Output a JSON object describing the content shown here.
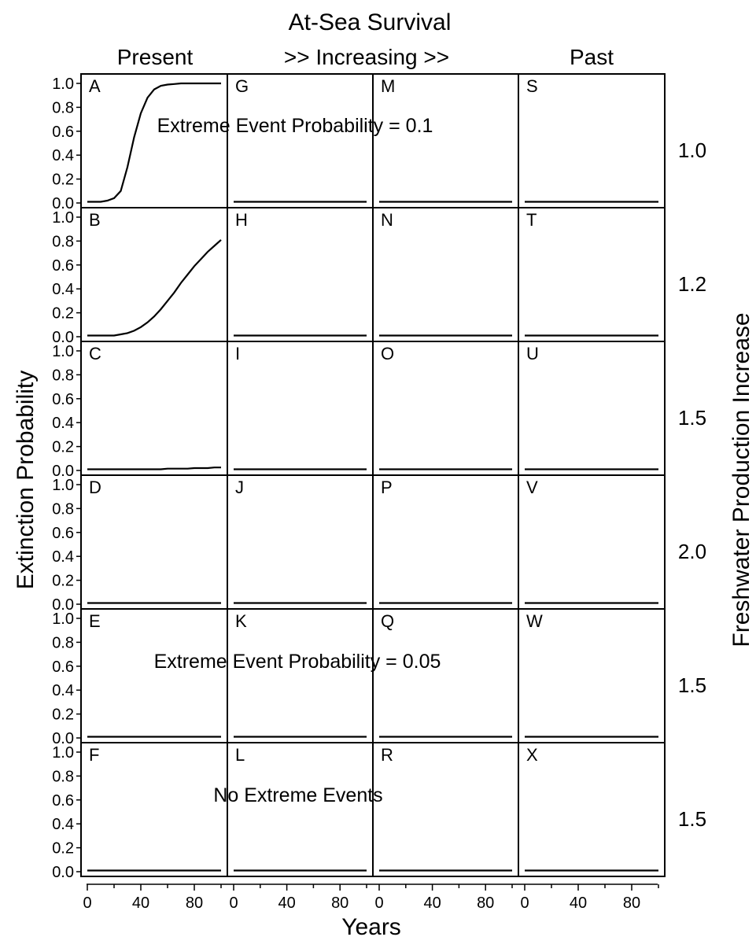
{
  "chart_data": {
    "type": "line",
    "title": "At-Sea Survival",
    "column_headers": [
      "Present",
      ">> Increasing >>",
      "",
      "Past"
    ],
    "xlabel": "Years",
    "ylabel": "Extinction Probability",
    "right_label": "Freshwater Production Increase",
    "row_labels": [
      "1.0",
      "1.2",
      "1.5",
      "2.0",
      "1.5",
      "1.5"
    ],
    "xlim": [
      0,
      100
    ],
    "ylim": [
      0,
      1.0
    ],
    "x_ticks": [
      "0",
      "40",
      "80"
    ],
    "y_ticks": [
      "0.0",
      "0.2",
      "0.4",
      "0.6",
      "0.8",
      "1.0"
    ],
    "annotations": [
      "Extreme Event Probability = 0.1",
      "Extreme Event Probability = 0.05",
      "No Extreme Events"
    ],
    "x": [
      0,
      5,
      10,
      15,
      20,
      25,
      30,
      35,
      40,
      45,
      50,
      55,
      60,
      65,
      70,
      75,
      80,
      85,
      90,
      95,
      100
    ],
    "panels": [
      {
        "letter": "A",
        "row": 0,
        "col": 0,
        "values": [
          0.01,
          0.01,
          0.01,
          0.02,
          0.04,
          0.1,
          0.3,
          0.55,
          0.75,
          0.88,
          0.95,
          0.98,
          0.99,
          0.995,
          1.0,
          1.0,
          1.0,
          1.0,
          1.0,
          1.0,
          1.0
        ]
      },
      {
        "letter": "B",
        "row": 1,
        "col": 0,
        "values": [
          0.01,
          0.01,
          0.01,
          0.01,
          0.01,
          0.02,
          0.03,
          0.05,
          0.08,
          0.12,
          0.17,
          0.23,
          0.3,
          0.37,
          0.45,
          0.52,
          0.59,
          0.65,
          0.71,
          0.76,
          0.81
        ]
      },
      {
        "letter": "C",
        "row": 2,
        "col": 0,
        "values": [
          0.01,
          0.01,
          0.01,
          0.01,
          0.01,
          0.01,
          0.01,
          0.01,
          0.01,
          0.01,
          0.01,
          0.01,
          0.015,
          0.015,
          0.015,
          0.015,
          0.02,
          0.02,
          0.02,
          0.025,
          0.025
        ]
      },
      {
        "letter": "D",
        "row": 3,
        "col": 0,
        "values": [
          0.01,
          0.01,
          0.01,
          0.01,
          0.01,
          0.01,
          0.01,
          0.01,
          0.01,
          0.01,
          0.01,
          0.01,
          0.01,
          0.01,
          0.01,
          0.01,
          0.01,
          0.01,
          0.01,
          0.01,
          0.01
        ]
      },
      {
        "letter": "E",
        "row": 4,
        "col": 0,
        "values": [
          0.01,
          0.01,
          0.01,
          0.01,
          0.01,
          0.01,
          0.01,
          0.01,
          0.01,
          0.01,
          0.01,
          0.01,
          0.01,
          0.01,
          0.01,
          0.01,
          0.01,
          0.01,
          0.01,
          0.01,
          0.01
        ]
      },
      {
        "letter": "F",
        "row": 5,
        "col": 0,
        "values": [
          0.01,
          0.01,
          0.01,
          0.01,
          0.01,
          0.01,
          0.01,
          0.01,
          0.01,
          0.01,
          0.01,
          0.01,
          0.01,
          0.01,
          0.01,
          0.01,
          0.01,
          0.01,
          0.01,
          0.01,
          0.01
        ]
      },
      {
        "letter": "G",
        "row": 0,
        "col": 1,
        "values": [
          0.01,
          0.01,
          0.01,
          0.01,
          0.01,
          0.01,
          0.01,
          0.01,
          0.01,
          0.01,
          0.01,
          0.01,
          0.01,
          0.01,
          0.01,
          0.01,
          0.01,
          0.01,
          0.01,
          0.01,
          0.01
        ]
      },
      {
        "letter": "H",
        "row": 1,
        "col": 1,
        "values": [
          0.01,
          0.01,
          0.01,
          0.01,
          0.01,
          0.01,
          0.01,
          0.01,
          0.01,
          0.01,
          0.01,
          0.01,
          0.01,
          0.01,
          0.01,
          0.01,
          0.01,
          0.01,
          0.01,
          0.01,
          0.01
        ]
      },
      {
        "letter": "I",
        "row": 2,
        "col": 1,
        "values": [
          0.01,
          0.01,
          0.01,
          0.01,
          0.01,
          0.01,
          0.01,
          0.01,
          0.01,
          0.01,
          0.01,
          0.01,
          0.01,
          0.01,
          0.01,
          0.01,
          0.01,
          0.01,
          0.01,
          0.01,
          0.01
        ]
      },
      {
        "letter": "J",
        "row": 3,
        "col": 1,
        "values": [
          0.01,
          0.01,
          0.01,
          0.01,
          0.01,
          0.01,
          0.01,
          0.01,
          0.01,
          0.01,
          0.01,
          0.01,
          0.01,
          0.01,
          0.01,
          0.01,
          0.01,
          0.01,
          0.01,
          0.01,
          0.01
        ]
      },
      {
        "letter": "K",
        "row": 4,
        "col": 1,
        "values": [
          0.01,
          0.01,
          0.01,
          0.01,
          0.01,
          0.01,
          0.01,
          0.01,
          0.01,
          0.01,
          0.01,
          0.01,
          0.01,
          0.01,
          0.01,
          0.01,
          0.01,
          0.01,
          0.01,
          0.01,
          0.01
        ]
      },
      {
        "letter": "L",
        "row": 5,
        "col": 1,
        "values": [
          0.01,
          0.01,
          0.01,
          0.01,
          0.01,
          0.01,
          0.01,
          0.01,
          0.01,
          0.01,
          0.01,
          0.01,
          0.01,
          0.01,
          0.01,
          0.01,
          0.01,
          0.01,
          0.01,
          0.01,
          0.01
        ]
      },
      {
        "letter": "M",
        "row": 0,
        "col": 2,
        "values": [
          0.01,
          0.01,
          0.01,
          0.01,
          0.01,
          0.01,
          0.01,
          0.01,
          0.01,
          0.01,
          0.01,
          0.01,
          0.01,
          0.01,
          0.01,
          0.01,
          0.01,
          0.01,
          0.01,
          0.01,
          0.01
        ]
      },
      {
        "letter": "N",
        "row": 1,
        "col": 2,
        "values": [
          0.01,
          0.01,
          0.01,
          0.01,
          0.01,
          0.01,
          0.01,
          0.01,
          0.01,
          0.01,
          0.01,
          0.01,
          0.01,
          0.01,
          0.01,
          0.01,
          0.01,
          0.01,
          0.01,
          0.01,
          0.01
        ]
      },
      {
        "letter": "O",
        "row": 2,
        "col": 2,
        "values": [
          0.01,
          0.01,
          0.01,
          0.01,
          0.01,
          0.01,
          0.01,
          0.01,
          0.01,
          0.01,
          0.01,
          0.01,
          0.01,
          0.01,
          0.01,
          0.01,
          0.01,
          0.01,
          0.01,
          0.01,
          0.01
        ]
      },
      {
        "letter": "P",
        "row": 3,
        "col": 2,
        "values": [
          0.01,
          0.01,
          0.01,
          0.01,
          0.01,
          0.01,
          0.01,
          0.01,
          0.01,
          0.01,
          0.01,
          0.01,
          0.01,
          0.01,
          0.01,
          0.01,
          0.01,
          0.01,
          0.01,
          0.01,
          0.01
        ]
      },
      {
        "letter": "Q",
        "row": 4,
        "col": 2,
        "values": [
          0.01,
          0.01,
          0.01,
          0.01,
          0.01,
          0.01,
          0.01,
          0.01,
          0.01,
          0.01,
          0.01,
          0.01,
          0.01,
          0.01,
          0.01,
          0.01,
          0.01,
          0.01,
          0.01,
          0.01,
          0.01
        ]
      },
      {
        "letter": "R",
        "row": 5,
        "col": 2,
        "values": [
          0.01,
          0.01,
          0.01,
          0.01,
          0.01,
          0.01,
          0.01,
          0.01,
          0.01,
          0.01,
          0.01,
          0.01,
          0.01,
          0.01,
          0.01,
          0.01,
          0.01,
          0.01,
          0.01,
          0.01,
          0.01
        ]
      },
      {
        "letter": "S",
        "row": 0,
        "col": 3,
        "values": [
          0.01,
          0.01,
          0.01,
          0.01,
          0.01,
          0.01,
          0.01,
          0.01,
          0.01,
          0.01,
          0.01,
          0.01,
          0.01,
          0.01,
          0.01,
          0.01,
          0.01,
          0.01,
          0.01,
          0.01,
          0.01
        ]
      },
      {
        "letter": "T",
        "row": 1,
        "col": 3,
        "values": [
          0.01,
          0.01,
          0.01,
          0.01,
          0.01,
          0.01,
          0.01,
          0.01,
          0.01,
          0.01,
          0.01,
          0.01,
          0.01,
          0.01,
          0.01,
          0.01,
          0.01,
          0.01,
          0.01,
          0.01,
          0.01
        ]
      },
      {
        "letter": "U",
        "row": 2,
        "col": 3,
        "values": [
          0.01,
          0.01,
          0.01,
          0.01,
          0.01,
          0.01,
          0.01,
          0.01,
          0.01,
          0.01,
          0.01,
          0.01,
          0.01,
          0.01,
          0.01,
          0.01,
          0.01,
          0.01,
          0.01,
          0.01,
          0.01
        ]
      },
      {
        "letter": "V",
        "row": 3,
        "col": 3,
        "values": [
          0.01,
          0.01,
          0.01,
          0.01,
          0.01,
          0.01,
          0.01,
          0.01,
          0.01,
          0.01,
          0.01,
          0.01,
          0.01,
          0.01,
          0.01,
          0.01,
          0.01,
          0.01,
          0.01,
          0.01,
          0.01
        ]
      },
      {
        "letter": "W",
        "row": 4,
        "col": 3,
        "values": [
          0.01,
          0.01,
          0.01,
          0.01,
          0.01,
          0.01,
          0.01,
          0.01,
          0.01,
          0.01,
          0.01,
          0.01,
          0.01,
          0.01,
          0.01,
          0.01,
          0.01,
          0.01,
          0.01,
          0.01,
          0.01
        ]
      },
      {
        "letter": "X",
        "row": 5,
        "col": 3,
        "values": [
          0.01,
          0.01,
          0.01,
          0.01,
          0.01,
          0.01,
          0.01,
          0.01,
          0.01,
          0.01,
          0.01,
          0.01,
          0.01,
          0.01,
          0.01,
          0.01,
          0.01,
          0.01,
          0.01,
          0.01,
          0.01
        ]
      }
    ]
  }
}
